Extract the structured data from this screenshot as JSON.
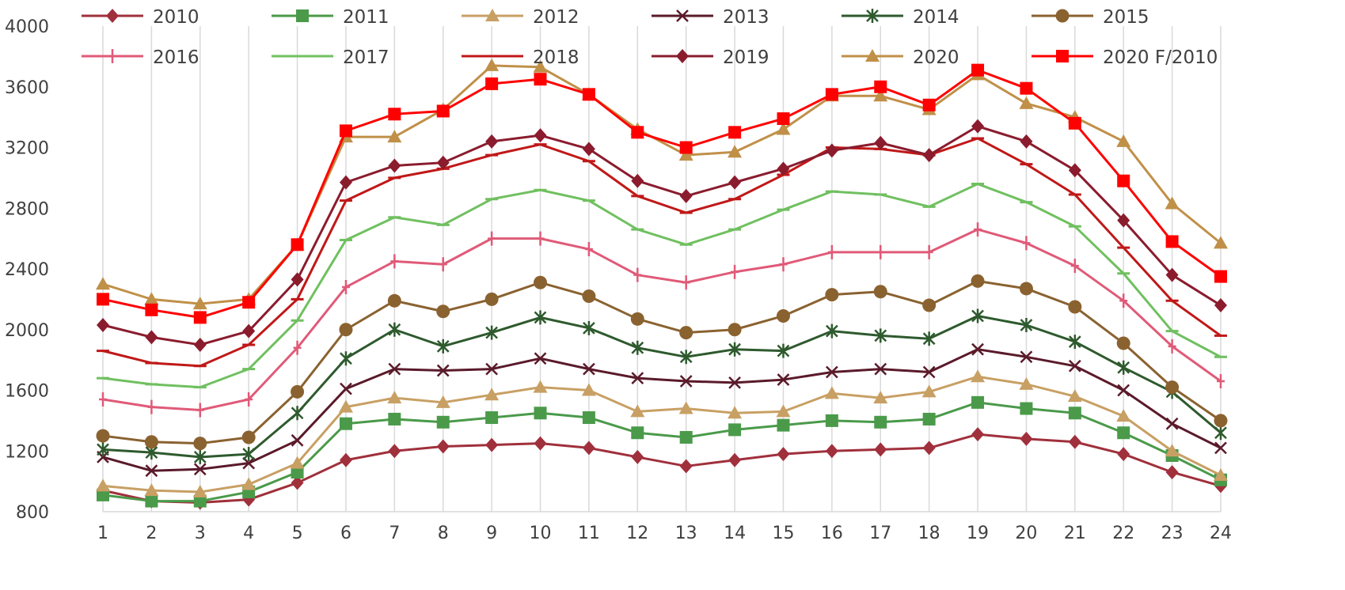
{
  "chart_data": {
    "type": "line",
    "title": "",
    "xlabel": "",
    "ylabel": "",
    "categories": [
      "1",
      "2",
      "3",
      "4",
      "5",
      "6",
      "7",
      "8",
      "9",
      "10",
      "11",
      "12",
      "13",
      "14",
      "15",
      "16",
      "17",
      "18",
      "19",
      "20",
      "21",
      "22",
      "23",
      "24"
    ],
    "ylim": [
      800,
      4000
    ],
    "yticks": [
      "800",
      "1200",
      "1600",
      "2000",
      "2400",
      "2800",
      "3200",
      "3600",
      "4000"
    ],
    "grid": "vertical",
    "legend_position": "top",
    "series": [
      {
        "name": "2010",
        "color": "#a0303c",
        "marker": "diamond",
        "values": [
          940,
          870,
          860,
          880,
          990,
          1140,
          1200,
          1230,
          1240,
          1250,
          1220,
          1160,
          1100,
          1140,
          1180,
          1200,
          1210,
          1220,
          1310,
          1280,
          1260,
          1180,
          1060,
          970
        ]
      },
      {
        "name": "2011",
        "color": "#4a9a4a",
        "marker": "square",
        "values": [
          910,
          870,
          870,
          930,
          1060,
          1380,
          1410,
          1390,
          1420,
          1450,
          1420,
          1320,
          1290,
          1340,
          1370,
          1400,
          1390,
          1410,
          1520,
          1480,
          1450,
          1320,
          1170,
          1010
        ]
      },
      {
        "name": "2012",
        "color": "#c8a064",
        "marker": "triangle",
        "values": [
          970,
          940,
          930,
          980,
          1120,
          1490,
          1550,
          1520,
          1570,
          1620,
          1600,
          1460,
          1480,
          1450,
          1460,
          1580,
          1550,
          1590,
          1690,
          1640,
          1560,
          1430,
          1200,
          1040
        ]
      },
      {
        "name": "2013",
        "color": "#5a1a2a",
        "marker": "x",
        "values": [
          1160,
          1070,
          1080,
          1120,
          1270,
          1610,
          1740,
          1730,
          1740,
          1810,
          1740,
          1680,
          1660,
          1650,
          1670,
          1720,
          1740,
          1720,
          1870,
          1820,
          1760,
          1600,
          1380,
          1220
        ]
      },
      {
        "name": "2014",
        "color": "#2e5a2e",
        "marker": "star",
        "values": [
          1210,
          1190,
          1160,
          1180,
          1450,
          1810,
          2000,
          1890,
          1980,
          2080,
          2010,
          1880,
          1820,
          1870,
          1860,
          1990,
          1960,
          1940,
          2090,
          2030,
          1920,
          1750,
          1590,
          1320
        ]
      },
      {
        "name": "2015",
        "color": "#8a6230",
        "marker": "circle",
        "values": [
          1300,
          1260,
          1250,
          1290,
          1590,
          2000,
          2190,
          2120,
          2200,
          2310,
          2220,
          2070,
          1980,
          2000,
          2090,
          2230,
          2250,
          2160,
          2320,
          2270,
          2150,
          1910,
          1620,
          1400
        ]
      },
      {
        "name": "2016",
        "color": "#e05a78",
        "marker": "plus",
        "values": [
          1540,
          1490,
          1470,
          1540,
          1880,
          2280,
          2450,
          2430,
          2600,
          2600,
          2530,
          2360,
          2310,
          2380,
          2430,
          2510,
          2510,
          2510,
          2660,
          2570,
          2420,
          2190,
          1890,
          1660
        ]
      },
      {
        "name": "2017",
        "color": "#70c060",
        "marker": "dash",
        "values": [
          1680,
          1640,
          1620,
          1740,
          2060,
          2590,
          2740,
          2690,
          2860,
          2920,
          2850,
          2660,
          2560,
          2660,
          2790,
          2910,
          2890,
          2810,
          2960,
          2840,
          2680,
          2370,
          1990,
          1820
        ]
      },
      {
        "name": "2018",
        "color": "#c01818",
        "marker": "dash",
        "values": [
          1860,
          1780,
          1760,
          1900,
          2200,
          2850,
          3000,
          3060,
          3150,
          3220,
          3110,
          2880,
          2770,
          2860,
          3020,
          3200,
          3190,
          3150,
          3260,
          3090,
          2890,
          2540,
          2190,
          1960
        ]
      },
      {
        "name": "2019",
        "color": "#8a1c2e",
        "marker": "diamond",
        "values": [
          2030,
          1950,
          1900,
          1990,
          2330,
          2970,
          3080,
          3100,
          3240,
          3280,
          3190,
          2980,
          2880,
          2970,
          3060,
          3180,
          3230,
          3150,
          3340,
          3240,
          3050,
          2720,
          2360,
          2160
        ]
      },
      {
        "name": "2020",
        "color": "#c09048",
        "marker": "triangle",
        "values": [
          2300,
          2200,
          2170,
          2200,
          2560,
          3270,
          3270,
          3450,
          3740,
          3730,
          3550,
          3320,
          3150,
          3170,
          3320,
          3540,
          3540,
          3450,
          3680,
          3490,
          3400,
          3240,
          2830,
          2570
        ]
      },
      {
        "name": "2020 F/2010",
        "color": "#ff0000",
        "marker": "square",
        "values": [
          2200,
          2130,
          2080,
          2180,
          2560,
          3310,
          3420,
          3440,
          3620,
          3650,
          3550,
          3300,
          3200,
          3300,
          3390,
          3550,
          3600,
          3480,
          3710,
          3590,
          3360,
          2980,
          2580,
          2350
        ]
      }
    ]
  }
}
